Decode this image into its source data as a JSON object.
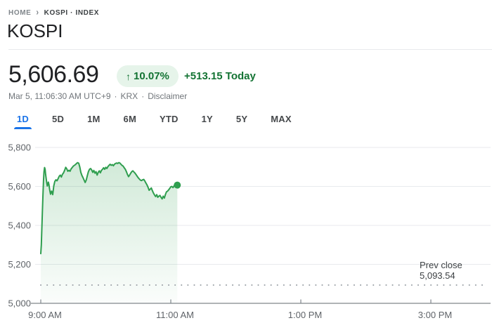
{
  "breadcrumb": {
    "home": "HOME",
    "separator": "›",
    "current": "KOSPI · INDEX"
  },
  "header": {
    "title": "KOSPI"
  },
  "quote": {
    "price": "5,606.69",
    "change_arrow": "↑",
    "change_percent": "10.07%",
    "change_absolute": "+513.15 Today",
    "timestamp": "Mar 5, 11:06:30 AM UTC+9",
    "separator": "·",
    "exchange": "KRX",
    "disclaimer": "Disclaimer"
  },
  "tabs": {
    "items": [
      {
        "label": "1D",
        "active": true
      },
      {
        "label": "5D",
        "active": false
      },
      {
        "label": "1M",
        "active": false
      },
      {
        "label": "6M",
        "active": false
      },
      {
        "label": "YTD",
        "active": false
      },
      {
        "label": "1Y",
        "active": false
      },
      {
        "label": "5Y",
        "active": false
      },
      {
        "label": "MAX",
        "active": false
      }
    ]
  },
  "colors": {
    "positive_text": "#137333",
    "badge_background": "#e6f4ea",
    "active_tab": "#1a73e8"
  },
  "chart_data": {
    "type": "area",
    "title": "KOSPI intraday (1D)",
    "x_unit": "minutes after 9:00 AM",
    "x_domain_minutes": [
      0,
      415
    ],
    "y_domain": [
      5000,
      5800
    ],
    "grid": true,
    "y_ticks": [
      {
        "label": "5,800",
        "value": 5800
      },
      {
        "label": "5,600",
        "value": 5600
      },
      {
        "label": "5,400",
        "value": 5400
      },
      {
        "label": "5,200",
        "value": 5200
      },
      {
        "label": "5,000",
        "value": 5000
      }
    ],
    "x_ticks": [
      {
        "label": "9:00 AM",
        "minute": 0
      },
      {
        "label": "11:00 AM",
        "minute": 120
      },
      {
        "label": "1:00 PM",
        "minute": 240
      },
      {
        "label": "3:00 PM",
        "minute": 360
      }
    ],
    "prev_close": {
      "label": "Prev close",
      "value_label": "5,093.54",
      "value": 5093.54
    },
    "last_point": {
      "minute": 126,
      "value": 5606.69,
      "time_label": "11:06 AM"
    },
    "style": {
      "line_color": "#2f9e4f",
      "fill_top": "rgba(47,158,79,0.24)",
      "fill_bottom": "rgba(47,158,79,0.02)",
      "grid_color": "#e8eaed",
      "axis_color": "#80868b",
      "dotted_color": "#9aa0a6",
      "label_color": "#5f6368"
    },
    "points": [
      [
        0,
        5255
      ],
      [
        0.5,
        5300
      ],
      [
        1,
        5380
      ],
      [
        1.5,
        5470
      ],
      [
        2,
        5555
      ],
      [
        2.5,
        5630
      ],
      [
        3,
        5675
      ],
      [
        3.5,
        5697
      ],
      [
        4,
        5688
      ],
      [
        4.5,
        5662
      ],
      [
        5,
        5640
      ],
      [
        5.5,
        5618
      ],
      [
        6,
        5602
      ],
      [
        6.5,
        5612
      ],
      [
        7,
        5622
      ],
      [
        7.5,
        5610
      ],
      [
        8,
        5592
      ],
      [
        8.5,
        5574
      ],
      [
        9,
        5560
      ],
      [
        9.5,
        5570
      ],
      [
        10,
        5576
      ],
      [
        10.5,
        5566
      ],
      [
        11,
        5558
      ],
      [
        11.5,
        5578
      ],
      [
        12,
        5602
      ],
      [
        13,
        5626
      ],
      [
        14,
        5634
      ],
      [
        15,
        5629
      ],
      [
        16,
        5640
      ],
      [
        17,
        5652
      ],
      [
        18,
        5658
      ],
      [
        19,
        5648
      ],
      [
        20,
        5662
      ],
      [
        21,
        5670
      ],
      [
        22,
        5682
      ],
      [
        23,
        5698
      ],
      [
        24,
        5690
      ],
      [
        25,
        5678
      ],
      [
        26,
        5683
      ],
      [
        27,
        5678
      ],
      [
        28,
        5690
      ],
      [
        29,
        5697
      ],
      [
        30,
        5704
      ],
      [
        31,
        5708
      ],
      [
        32,
        5712
      ],
      [
        33,
        5718
      ],
      [
        34,
        5722
      ],
      [
        35,
        5719
      ],
      [
        36,
        5700
      ],
      [
        37,
        5672
      ],
      [
        38,
        5656
      ],
      [
        39,
        5645
      ],
      [
        40,
        5632
      ],
      [
        41,
        5620
      ],
      [
        42,
        5634
      ],
      [
        43,
        5656
      ],
      [
        44,
        5676
      ],
      [
        45,
        5688
      ],
      [
        46,
        5692
      ],
      [
        47,
        5684
      ],
      [
        48,
        5672
      ],
      [
        49,
        5682
      ],
      [
        50,
        5668
      ],
      [
        51,
        5676
      ],
      [
        52,
        5658
      ],
      [
        53,
        5672
      ],
      [
        54,
        5680
      ],
      [
        55,
        5670
      ],
      [
        56,
        5682
      ],
      [
        57,
        5688
      ],
      [
        58,
        5696
      ],
      [
        59,
        5688
      ],
      [
        60,
        5698
      ],
      [
        61,
        5692
      ],
      [
        62,
        5702
      ],
      [
        63,
        5708
      ],
      [
        64,
        5714
      ],
      [
        65,
        5708
      ],
      [
        66,
        5712
      ],
      [
        67,
        5706
      ],
      [
        68,
        5714
      ],
      [
        69,
        5718
      ],
      [
        70,
        5720
      ],
      [
        71,
        5718
      ],
      [
        72,
        5722
      ],
      [
        73,
        5720
      ],
      [
        74,
        5714
      ],
      [
        75,
        5708
      ],
      [
        76,
        5704
      ],
      [
        77,
        5696
      ],
      [
        78,
        5688
      ],
      [
        79,
        5676
      ],
      [
        80,
        5662
      ],
      [
        81,
        5650
      ],
      [
        82,
        5658
      ],
      [
        83,
        5668
      ],
      [
        84,
        5676
      ],
      [
        85,
        5680
      ],
      [
        86,
        5674
      ],
      [
        87,
        5668
      ],
      [
        88,
        5660
      ],
      [
        89,
        5652
      ],
      [
        90,
        5644
      ],
      [
        91,
        5638
      ],
      [
        92,
        5632
      ],
      [
        93,
        5630
      ],
      [
        94,
        5634
      ],
      [
        95,
        5636
      ],
      [
        96,
        5628
      ],
      [
        97,
        5618
      ],
      [
        98,
        5608
      ],
      [
        99,
        5596
      ],
      [
        100,
        5580
      ],
      [
        101,
        5586
      ],
      [
        102,
        5592
      ],
      [
        103,
        5578
      ],
      [
        104,
        5566
      ],
      [
        105,
        5556
      ],
      [
        106,
        5548
      ],
      [
        107,
        5558
      ],
      [
        108,
        5544
      ],
      [
        109,
        5550
      ],
      [
        110,
        5554
      ],
      [
        111,
        5544
      ],
      [
        112,
        5536
      ],
      [
        113,
        5550
      ],
      [
        114,
        5540
      ],
      [
        115,
        5558
      ],
      [
        116,
        5572
      ],
      [
        117,
        5576
      ],
      [
        118,
        5582
      ],
      [
        119,
        5590
      ],
      [
        120,
        5598
      ],
      [
        121,
        5600
      ],
      [
        122,
        5594
      ],
      [
        123,
        5602
      ],
      [
        124,
        5612
      ],
      [
        125,
        5610
      ],
      [
        126,
        5606.69
      ]
    ]
  }
}
